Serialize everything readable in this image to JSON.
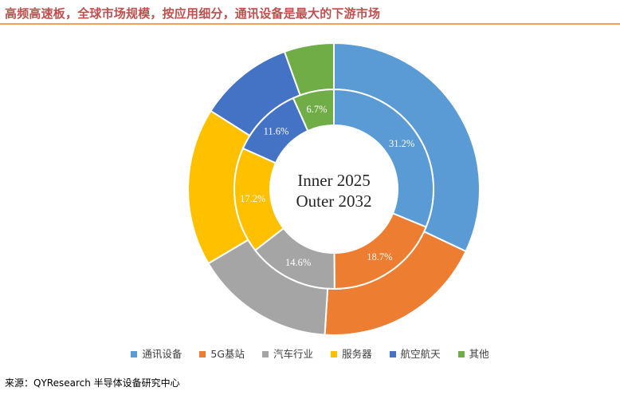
{
  "title": "高频高速板，全球市场规模，按应用细分，通讯设备是最大的下游市场",
  "source": "来源：QYResearch 半导体设备研究中心",
  "chart_data": {
    "type": "pie",
    "variant": "nested-donut",
    "categories": [
      "通讯设备",
      "5G基站",
      "汽车行业",
      "服务器",
      "航空航天",
      "其他"
    ],
    "colors": [
      "#5b9bd5",
      "#ed7d31",
      "#a5a5a5",
      "#ffc000",
      "#4472c4",
      "#70ad47"
    ],
    "center_text": [
      "Inner 2025",
      "Outer 2032"
    ],
    "series": [
      {
        "name": "2025",
        "ring": "inner",
        "values": [
          31.2,
          18.7,
          14.6,
          17.2,
          11.6,
          6.7
        ],
        "labels": [
          "31.2%",
          "18.7%",
          "14.6%",
          "17.2%",
          "11.6%",
          "6.7%"
        ]
      },
      {
        "name": "2032",
        "ring": "outer",
        "values": [
          32.0,
          19.0,
          15.5,
          17.5,
          10.5,
          5.5
        ],
        "labels": []
      }
    ],
    "legend_position": "bottom"
  }
}
